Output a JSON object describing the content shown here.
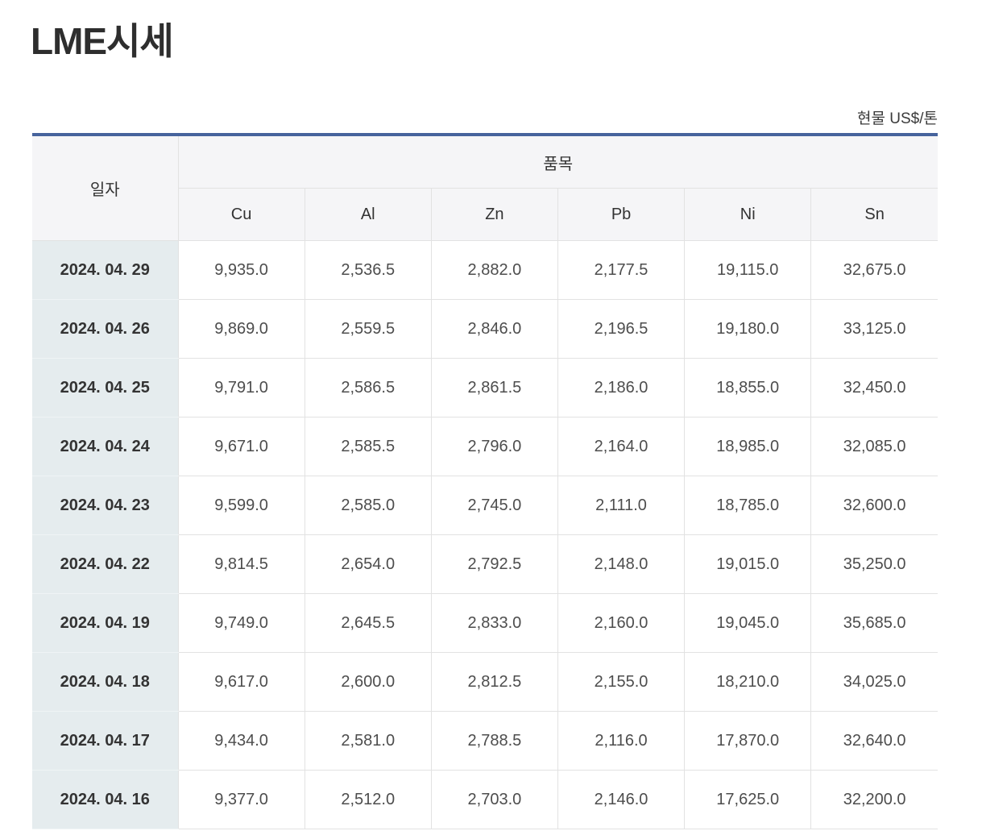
{
  "page": {
    "title": "LME시세",
    "unit_label": "현물 US$/톤"
  },
  "colors": {
    "accent_line": "#46639c",
    "header_bg": "#f5f5f7",
    "date_column_bg": "#e5ecee",
    "border": "#e2e2e2"
  },
  "table": {
    "date_header": "일자",
    "items_header": "품목",
    "columns": [
      "Cu",
      "Al",
      "Zn",
      "Pb",
      "Ni",
      "Sn"
    ],
    "rows": [
      {
        "date": "2024. 04. 29",
        "values": [
          "9,935.0",
          "2,536.5",
          "2,882.0",
          "2,177.5",
          "19,115.0",
          "32,675.0"
        ]
      },
      {
        "date": "2024. 04. 26",
        "values": [
          "9,869.0",
          "2,559.5",
          "2,846.0",
          "2,196.5",
          "19,180.0",
          "33,125.0"
        ]
      },
      {
        "date": "2024. 04. 25",
        "values": [
          "9,791.0",
          "2,586.5",
          "2,861.5",
          "2,186.0",
          "18,855.0",
          "32,450.0"
        ]
      },
      {
        "date": "2024. 04. 24",
        "values": [
          "9,671.0",
          "2,585.5",
          "2,796.0",
          "2,164.0",
          "18,985.0",
          "32,085.0"
        ]
      },
      {
        "date": "2024. 04. 23",
        "values": [
          "9,599.0",
          "2,585.0",
          "2,745.0",
          "2,111.0",
          "18,785.0",
          "32,600.0"
        ]
      },
      {
        "date": "2024. 04. 22",
        "values": [
          "9,814.5",
          "2,654.0",
          "2,792.5",
          "2,148.0",
          "19,015.0",
          "35,250.0"
        ]
      },
      {
        "date": "2024. 04. 19",
        "values": [
          "9,749.0",
          "2,645.5",
          "2,833.0",
          "2,160.0",
          "19,045.0",
          "35,685.0"
        ]
      },
      {
        "date": "2024. 04. 18",
        "values": [
          "9,617.0",
          "2,600.0",
          "2,812.5",
          "2,155.0",
          "18,210.0",
          "34,025.0"
        ]
      },
      {
        "date": "2024. 04. 17",
        "values": [
          "9,434.0",
          "2,581.0",
          "2,788.5",
          "2,116.0",
          "17,870.0",
          "32,640.0"
        ]
      },
      {
        "date": "2024. 04. 16",
        "values": [
          "9,377.0",
          "2,512.0",
          "2,703.0",
          "2,146.0",
          "17,625.0",
          "32,200.0"
        ]
      }
    ]
  }
}
